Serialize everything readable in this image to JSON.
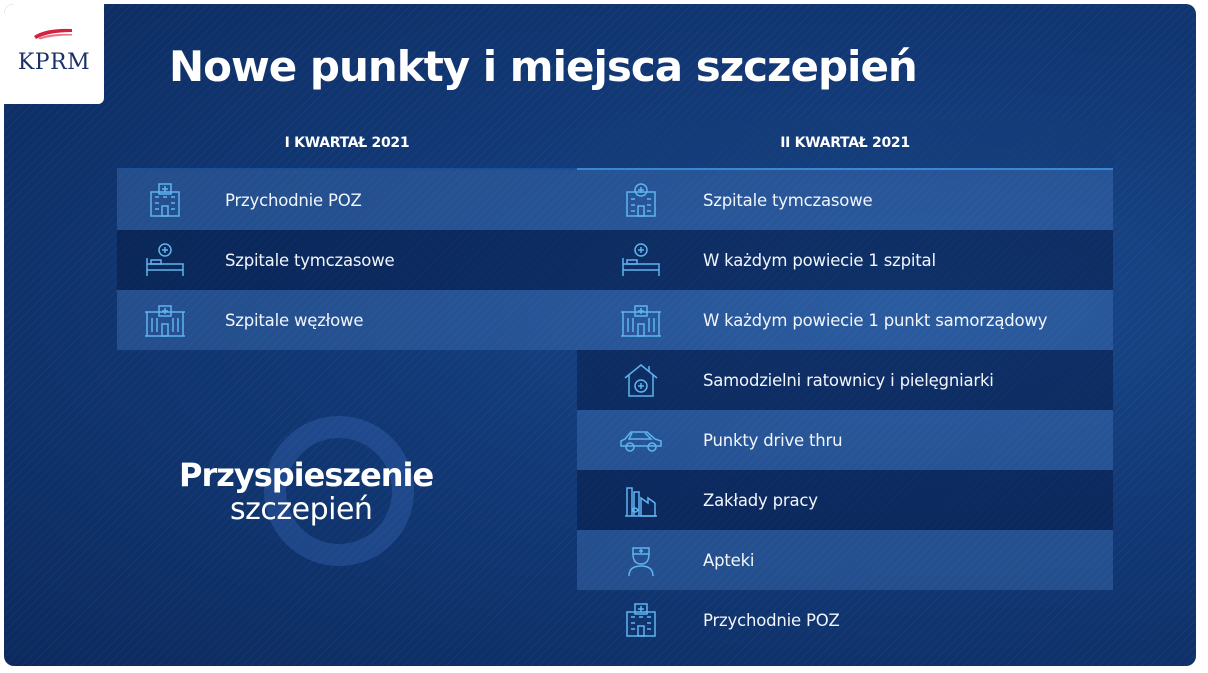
{
  "logo": {
    "text": "KPRM"
  },
  "title": "Nowe punkty i miejsca szczepień",
  "columns": {
    "q1": {
      "header": "I KWARTAŁ 2021",
      "items": [
        {
          "icon": "clinic-building-icon",
          "label": "Przychodnie POZ"
        },
        {
          "icon": "hospital-bed-icon",
          "label": "Szpitale tymczasowe"
        },
        {
          "icon": "hospital-building-icon",
          "label": "Szpitale węzłowe"
        }
      ]
    },
    "q2": {
      "header": "II KWARTAŁ 2021",
      "items": [
        {
          "icon": "clinic-building-icon",
          "label": "Szpitale tymczasowe"
        },
        {
          "icon": "hospital-bed-icon",
          "label": "W każdym powiecie 1 szpital"
        },
        {
          "icon": "hospital-building-icon",
          "label": "W każdym powiecie 1 punkt samorządowy"
        },
        {
          "icon": "house-medical-icon",
          "label": "Samodzielni ratownicy i pielęgniarki"
        },
        {
          "icon": "car-icon",
          "label": "Punkty drive thru"
        },
        {
          "icon": "factory-icon",
          "label": "Zakłady pracy"
        },
        {
          "icon": "pharmacist-icon",
          "label": "Apteki"
        },
        {
          "icon": "clinic-building-icon",
          "label": "Przychodnie POZ"
        }
      ]
    }
  },
  "badge": {
    "line1": "Przyspieszenie",
    "line2": "szczepień"
  },
  "colors": {
    "background": "#123a78",
    "icon": "#5fb4f0",
    "text": "#ffffff"
  }
}
